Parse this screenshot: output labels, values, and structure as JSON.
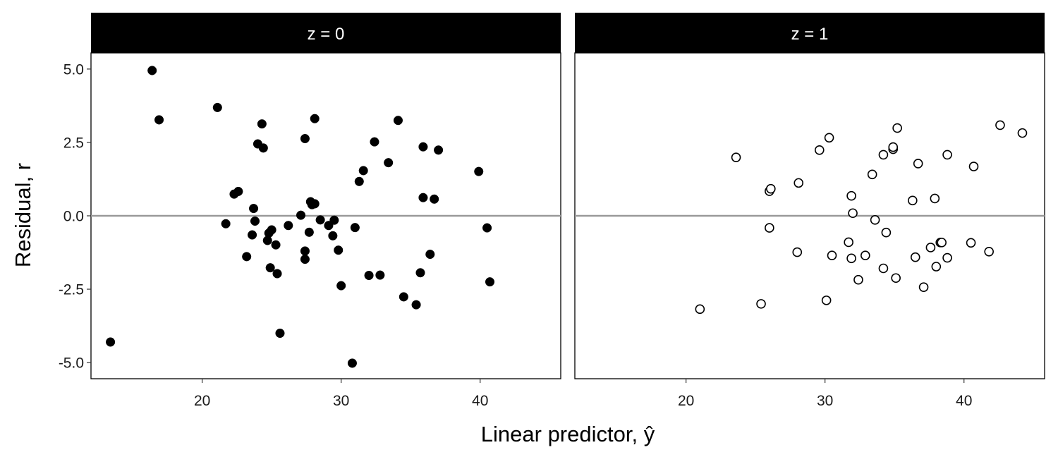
{
  "chart_data": {
    "type": "scatter",
    "facet_variable": "z",
    "xlabel": "Linear predictor, ŷ",
    "ylabel": "Residual, r",
    "xlim": [
      12,
      45.8
    ],
    "ylim": [
      -5.55,
      5.55
    ],
    "xticks": [
      20,
      30,
      40
    ],
    "xtick_labels": [
      "20",
      "30",
      "40"
    ],
    "yticks": [
      5,
      2.5,
      0,
      -2.5,
      -5
    ],
    "ytick_labels": [
      "5.0",
      "2.5",
      "0.0",
      "-2.5",
      "-5.0"
    ],
    "reference_line": {
      "y": 0,
      "color": "#999999"
    },
    "grid": false,
    "colors": {
      "strip_bg": "#000000",
      "strip_text": "#ffffff",
      "point": "#000000",
      "refline": "#999999"
    },
    "panels": [
      {
        "label": "z = 0",
        "marker": "filled-circle",
        "points": [
          [
            16.4,
            4.95
          ],
          [
            16.9,
            3.27
          ],
          [
            21.1,
            3.69
          ],
          [
            13.4,
            -4.3
          ],
          [
            22.3,
            0.74
          ],
          [
            22.6,
            0.83
          ],
          [
            21.7,
            -0.27
          ],
          [
            23.2,
            -1.39
          ],
          [
            23.7,
            0.25
          ],
          [
            23.8,
            -0.18
          ],
          [
            23.6,
            -0.65
          ],
          [
            24.0,
            2.45
          ],
          [
            24.3,
            3.13
          ],
          [
            24.4,
            2.31
          ],
          [
            24.7,
            -0.84
          ],
          [
            24.8,
            -0.59
          ],
          [
            24.9,
            -1.77
          ],
          [
            25.0,
            -0.48
          ],
          [
            25.3,
            -0.99
          ],
          [
            25.4,
            -1.97
          ],
          [
            25.6,
            -4.0
          ],
          [
            26.2,
            -0.33
          ],
          [
            27.1,
            0.02
          ],
          [
            27.4,
            2.63
          ],
          [
            27.4,
            -1.2
          ],
          [
            27.4,
            -1.48
          ],
          [
            27.7,
            -0.56
          ],
          [
            27.8,
            0.48
          ],
          [
            27.9,
            0.38
          ],
          [
            28.1,
            0.41
          ],
          [
            28.1,
            3.31
          ],
          [
            28.5,
            -0.14
          ],
          [
            29.1,
            -0.33
          ],
          [
            29.4,
            -0.68
          ],
          [
            29.5,
            -0.15
          ],
          [
            29.8,
            -1.17
          ],
          [
            30.0,
            -2.38
          ],
          [
            30.8,
            -5.02
          ],
          [
            31.0,
            -0.4
          ],
          [
            31.3,
            1.17
          ],
          [
            31.6,
            1.54
          ],
          [
            32.0,
            -2.03
          ],
          [
            32.4,
            2.52
          ],
          [
            32.8,
            -2.02
          ],
          [
            33.4,
            1.81
          ],
          [
            34.1,
            3.25
          ],
          [
            34.5,
            -2.76
          ],
          [
            35.4,
            -3.03
          ],
          [
            35.7,
            -1.94
          ],
          [
            35.9,
            2.35
          ],
          [
            35.9,
            0.62
          ],
          [
            36.4,
            -1.31
          ],
          [
            36.7,
            0.57
          ],
          [
            37.0,
            2.24
          ],
          [
            39.9,
            1.51
          ],
          [
            40.5,
            -0.41
          ],
          [
            40.7,
            -2.25
          ]
        ]
      },
      {
        "label": "z = 1",
        "marker": "open-circle",
        "points": [
          [
            21.0,
            -3.18
          ],
          [
            23.6,
            1.99
          ],
          [
            25.4,
            -3.0
          ],
          [
            26.0,
            0.84
          ],
          [
            26.0,
            -0.41
          ],
          [
            26.1,
            0.92
          ],
          [
            28.0,
            -1.24
          ],
          [
            28.1,
            1.12
          ],
          [
            29.6,
            2.24
          ],
          [
            30.1,
            -2.88
          ],
          [
            30.3,
            2.66
          ],
          [
            30.5,
            -1.35
          ],
          [
            31.7,
            -0.9
          ],
          [
            31.9,
            0.68
          ],
          [
            31.9,
            -1.45
          ],
          [
            32.0,
            0.09
          ],
          [
            32.4,
            -2.18
          ],
          [
            32.9,
            -1.35
          ],
          [
            33.4,
            1.41
          ],
          [
            33.6,
            -0.14
          ],
          [
            34.2,
            2.08
          ],
          [
            34.2,
            -1.79
          ],
          [
            34.4,
            -0.57
          ],
          [
            34.9,
            2.27
          ],
          [
            34.9,
            2.34
          ],
          [
            35.1,
            -2.12
          ],
          [
            35.2,
            2.99
          ],
          [
            36.3,
            0.52
          ],
          [
            36.5,
            -1.41
          ],
          [
            36.7,
            1.78
          ],
          [
            37.1,
            -2.43
          ],
          [
            37.6,
            -1.08
          ],
          [
            37.9,
            0.59
          ],
          [
            38.0,
            -1.73
          ],
          [
            38.3,
            -0.91
          ],
          [
            38.4,
            -0.91
          ],
          [
            38.8,
            2.08
          ],
          [
            38.8,
            -1.43
          ],
          [
            40.5,
            -0.92
          ],
          [
            40.7,
            1.68
          ],
          [
            41.8,
            -1.22
          ],
          [
            42.6,
            3.09
          ],
          [
            44.2,
            2.82
          ]
        ]
      }
    ]
  }
}
